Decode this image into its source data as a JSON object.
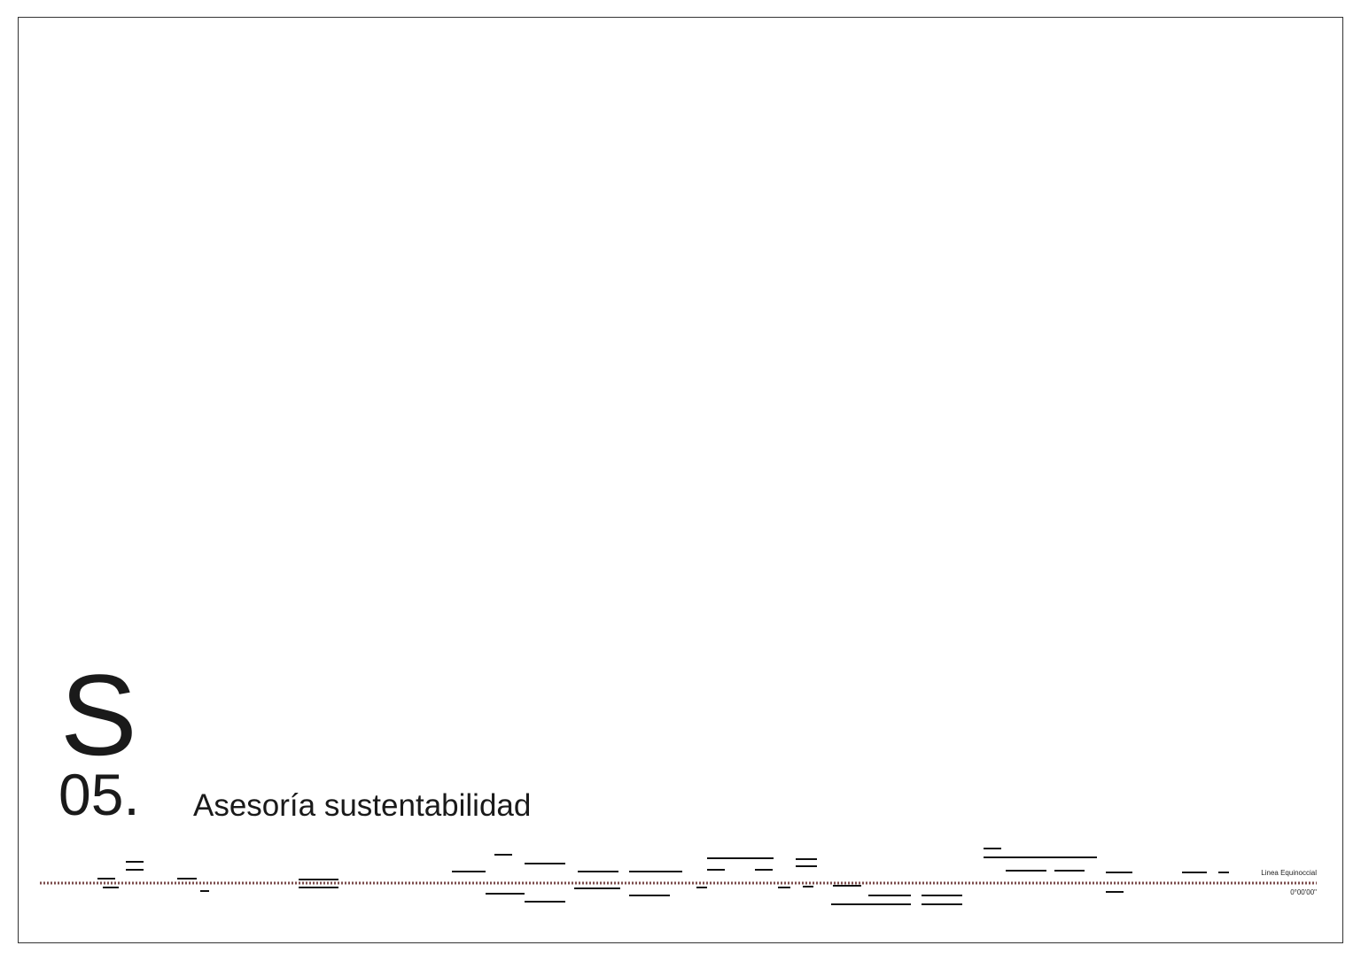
{
  "header": {
    "letter": "S",
    "number": "05.",
    "title": "Asesoría sustentabilidad"
  },
  "footer": {
    "line_label": "Linea Equinoccial",
    "coordinate": "0°00'00\""
  }
}
